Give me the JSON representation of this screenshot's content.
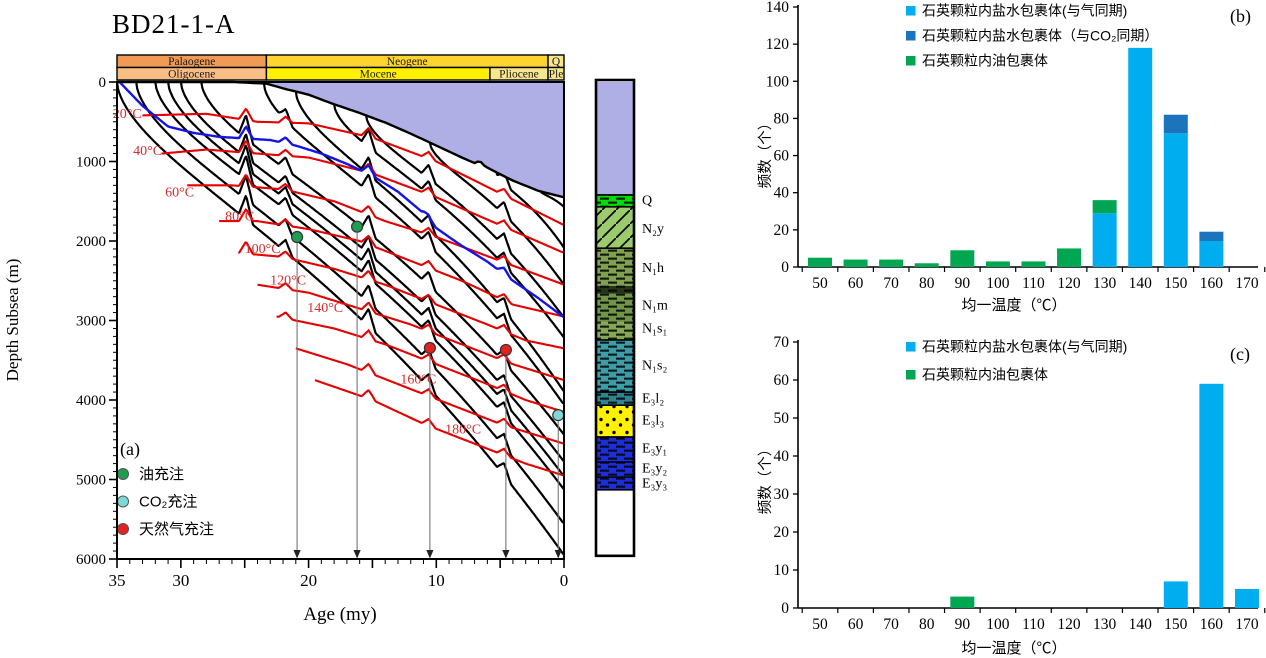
{
  "chart_data": [
    {
      "id": "a",
      "type": "line",
      "title": "BD21-1-A",
      "panel_label": "(a)",
      "xlabel": "Age (my)",
      "ylabel": "Depth Subsea (m)",
      "xlim": [
        35,
        0
      ],
      "ylim": [
        0,
        6000
      ],
      "x_major_tick": 5,
      "x_minor_tick": 1,
      "x_tick_labels": [
        35,
        30,
        20,
        10,
        0
      ],
      "y_major_tick": 1000,
      "y_minor_tick": 100,
      "water_color": "#AFAFE6",
      "chrono_header": {
        "rows": [
          [
            {
              "label": "Palaogene",
              "age_from": 35,
              "age_to": 23.3,
              "color": "#F09A55"
            },
            {
              "label": "Neogene",
              "age_from": 23.3,
              "age_to": 1.25,
              "color": "#FFD42E"
            },
            {
              "label": "Q",
              "age_from": 1.25,
              "age_to": 0,
              "color": "#F8E68C"
            }
          ],
          [
            {
              "label": "Oligocene",
              "age_from": 35,
              "age_to": 23.3,
              "color": "#F9BE85"
            },
            {
              "label": "Mocene",
              "age_from": 23.3,
              "age_to": 5.8,
              "color": "#FFF100"
            },
            {
              "label": "Pliocene",
              "age_from": 5.8,
              "age_to": 1.25,
              "color": "#F8E68C"
            },
            {
              "label": "Ple",
              "age_from": 1.25,
              "age_to": 0,
              "color": "#F8E68C"
            }
          ]
        ]
      },
      "legend": [
        {
          "label": "油充注",
          "color": "#1E9E50"
        },
        {
          "label": "CO₂充注",
          "color": "#7FD8D8"
        },
        {
          "label": "天然气充注",
          "color": "#E02222"
        }
      ],
      "seabed_points": [
        [
          35,
          0
        ],
        [
          30,
          0
        ],
        [
          26,
          0
        ],
        [
          23.3,
          20
        ],
        [
          22,
          80
        ],
        [
          20,
          160
        ],
        [
          18,
          280
        ],
        [
          16,
          390
        ],
        [
          14,
          510
        ],
        [
          12,
          650
        ],
        [
          10,
          800
        ],
        [
          8,
          950
        ],
        [
          7,
          1020
        ],
        [
          6.6,
          990
        ],
        [
          6.2,
          1060
        ],
        [
          5,
          1160
        ],
        [
          4,
          1240
        ],
        [
          2,
          1370
        ],
        [
          0,
          1450
        ]
      ],
      "blue_horizon_points": [
        [
          34.8,
          0
        ],
        [
          33,
          300
        ],
        [
          31,
          560
        ],
        [
          29,
          640
        ],
        [
          27,
          690
        ],
        [
          25,
          710
        ],
        [
          23,
          730
        ],
        [
          21,
          800
        ],
        [
          19,
          900
        ],
        [
          17,
          1030
        ],
        [
          15,
          1180
        ],
        [
          13,
          1380
        ],
        [
          11,
          1650
        ],
        [
          10.5,
          1780
        ],
        [
          9,
          1950
        ],
        [
          8,
          2060
        ],
        [
          6,
          2260
        ],
        [
          4,
          2500
        ],
        [
          2,
          2720
        ],
        [
          0,
          2960
        ]
      ],
      "blue_color": "#1414E6",
      "horizons": [
        {
          "start_age": 1.8,
          "end_depth": 1570
        },
        {
          "start_age": 5.3,
          "end_depth": 2085
        },
        {
          "start_age": 10.5,
          "end_depth": 2550
        },
        {
          "start_age": 15.5,
          "end_depth": 2965
        },
        {
          "start_age": 18,
          "end_depth": 3215
        },
        {
          "start_age": 21,
          "end_depth": 3895
        },
        {
          "start_age": 23.5,
          "end_depth": 4060
        },
        {
          "start_age": 28.4,
          "end_depth": 4435
        },
        {
          "start_age": 30,
          "end_depth": 4775
        },
        {
          "start_age": 31,
          "end_depth": 4960
        },
        {
          "start_age": 32,
          "end_depth": 5125
        },
        {
          "start_age": 33.5,
          "end_depth": 5560
        },
        {
          "start_age": 35,
          "end_depth": 5950
        }
      ],
      "erosion_events": [
        {
          "age": 24.9,
          "amp": 300
        },
        {
          "age": 21.8,
          "amp": 150
        },
        {
          "age": 15.3,
          "amp": 220
        },
        {
          "age": 10.6,
          "amp": 170
        },
        {
          "age": 4.7,
          "amp": 160
        }
      ],
      "isotherm_color": "#E60000",
      "isotherm_label_color": "#D62E2E",
      "isotherms": [
        {
          "label": "20°C",
          "label_age": 34.2,
          "label_depth": 450,
          "points": [
            [
              33,
              420
            ],
            [
              28,
              400
            ],
            [
              24,
              500
            ],
            [
              20,
              520
            ],
            [
              15,
              700
            ],
            [
              10,
              1000
            ],
            [
              5,
              1400
            ],
            [
              0,
              1800
            ]
          ]
        },
        {
          "label": "40°C",
          "label_age": 32.6,
          "label_depth": 920,
          "points": [
            [
              31.5,
              900
            ],
            [
              28,
              850
            ],
            [
              24,
              900
            ],
            [
              20,
              950
            ],
            [
              15,
              1150
            ],
            [
              10,
              1450
            ],
            [
              5,
              1800
            ],
            [
              0,
              2150
            ]
          ]
        },
        {
          "label": "60°C",
          "label_age": 30.1,
          "label_depth": 1440,
          "points": [
            [
              29.5,
              1300
            ],
            [
              26,
              1300
            ],
            [
              22,
              1350
            ],
            [
              18,
              1500
            ],
            [
              14,
              1750
            ],
            [
              10,
              1950
            ],
            [
              5,
              2250
            ],
            [
              0,
              2550
            ]
          ]
        },
        {
          "label": "80°C",
          "label_age": 25.4,
          "label_depth": 1740,
          "points": [
            [
              27,
              1750
            ],
            [
              24,
              1750
            ],
            [
              20,
              1850
            ],
            [
              16,
              2000
            ],
            [
              12,
              2250
            ],
            [
              8,
              2500
            ],
            [
              4,
              2800
            ],
            [
              0,
              2950
            ]
          ]
        },
        {
          "label": "100°C",
          "label_age": 23.6,
          "label_depth": 2150,
          "points": [
            [
              25.5,
              2150
            ],
            [
              22,
              2200
            ],
            [
              18,
              2350
            ],
            [
              14,
              2550
            ],
            [
              10,
              2800
            ],
            [
              6,
              3050
            ],
            [
              3,
              3250
            ],
            [
              0,
              3350
            ]
          ]
        },
        {
          "label": "120°C",
          "label_age": 21.6,
          "label_depth": 2550,
          "points": [
            [
              24,
              2550
            ],
            [
              20,
              2650
            ],
            [
              16,
              2850
            ],
            [
              12,
              3050
            ],
            [
              8,
              3300
            ],
            [
              4,
              3550
            ],
            [
              0,
              3750
            ]
          ]
        },
        {
          "label": "140°C",
          "label_age": 18.7,
          "label_depth": 2890,
          "points": [
            [
              22.5,
              2950
            ],
            [
              18,
              3100
            ],
            [
              14,
              3300
            ],
            [
              10,
              3550
            ],
            [
              6,
              3800
            ],
            [
              3,
              4000
            ],
            [
              0,
              4150
            ]
          ]
        },
        {
          "label": "160°C",
          "label_age": 11.4,
          "label_depth": 3790,
          "points": [
            [
              21,
              3350
            ],
            [
              17,
              3550
            ],
            [
              13,
              3800
            ],
            [
              9,
              4050
            ],
            [
              5,
              4300
            ],
            [
              2,
              4450
            ],
            [
              0,
              4550
            ]
          ]
        },
        {
          "label": "180°C",
          "label_age": 7.9,
          "label_depth": 4420,
          "points": [
            [
              19.5,
              3750
            ],
            [
              15,
              4000
            ],
            [
              11,
              4300
            ],
            [
              7,
              4550
            ],
            [
              3,
              4800
            ],
            [
              0,
              4950
            ]
          ]
        }
      ],
      "charge_events": [
        {
          "type": "oil",
          "age": 20.9,
          "depth": 1950,
          "color": "#1E9E50"
        },
        {
          "type": "oil",
          "age": 16.2,
          "depth": 1820,
          "color": "#1E9E50"
        },
        {
          "type": "gas",
          "age": 10.5,
          "depth": 3345,
          "color": "#E02222"
        },
        {
          "type": "gas",
          "age": 4.55,
          "depth": 3370,
          "color": "#E02222"
        },
        {
          "type": "co2",
          "age": 0.45,
          "depth": 4190,
          "color": "#7FD8D8"
        }
      ],
      "strat_column": {
        "bands": [
          {
            "from": 0,
            "to": 1420,
            "color": "#AFAFE6",
            "pattern": "none"
          },
          {
            "from": 1420,
            "to": 1570,
            "color": "#00DD00",
            "pattern": "dash"
          },
          {
            "from": 1570,
            "to": 2090,
            "color": "#9CCB6E",
            "pattern": "hatch"
          },
          {
            "from": 2090,
            "to": 2565,
            "color": "#7FA04F",
            "pattern": "dash"
          },
          {
            "from": 2565,
            "to": 2665,
            "color": "#25351A",
            "pattern": "dash"
          },
          {
            "from": 2665,
            "to": 3020,
            "color": "#6F9646",
            "pattern": "dash"
          },
          {
            "from": 3020,
            "to": 3245,
            "color": "#85A855",
            "pattern": "dash"
          },
          {
            "from": 3245,
            "to": 3900,
            "color": "#3B9DA8",
            "pattern": "dash"
          },
          {
            "from": 3900,
            "to": 4065,
            "color": "#2E8490",
            "pattern": "dash"
          },
          {
            "from": 4065,
            "to": 4465,
            "color": "#FFF100",
            "pattern": "dots"
          },
          {
            "from": 4465,
            "to": 4780,
            "color": "#1C2FD6",
            "pattern": "dash"
          },
          {
            "from": 4780,
            "to": 4970,
            "color": "#1C2FD6",
            "pattern": "dash"
          },
          {
            "from": 4970,
            "to": 5130,
            "color": "#1C2FD6",
            "pattern": "dash"
          },
          {
            "from": 5130,
            "to": 5960,
            "color": "#FFFFFF",
            "pattern": "none"
          }
        ],
        "labels": [
          {
            "text": "Q",
            "depth": 1480
          },
          {
            "text": "N₂y",
            "depth": 1835
          },
          {
            "text": "N₁h",
            "depth": 2325
          },
          {
            "text": "N₁m",
            "depth": 2800
          },
          {
            "text": "N₁s₁",
            "depth": 3090
          },
          {
            "text": "N₁s₂",
            "depth": 3555
          },
          {
            "text": "E₃l₂",
            "depth": 3970
          },
          {
            "text": "E₃l₃",
            "depth": 4245
          },
          {
            "text": "E₃y₁",
            "depth": 4600
          },
          {
            "text": "E₃y₂",
            "depth": 4850
          },
          {
            "text": "E₃y₃",
            "depth": 5040
          }
        ]
      }
    },
    {
      "id": "b",
      "type": "bar",
      "panel_label": "(b)",
      "xlabel": "均一温度（℃）",
      "ylabel": "频数（个）",
      "categories": [
        50,
        60,
        70,
        80,
        90,
        100,
        110,
        120,
        130,
        140,
        150,
        160,
        170
      ],
      "ylim": [
        0,
        140
      ],
      "y_tick": 20,
      "series": [
        {
          "name": "石英颗粒内盐水包裹体(与气同期)",
          "color": "#00AEEF",
          "values": [
            0,
            0,
            0,
            0,
            0,
            0,
            0,
            0,
            29,
            118,
            72,
            14,
            0
          ]
        },
        {
          "name": "石英颗粒内盐水包裹体（与CO₂同期）",
          "color": "#1C75BC",
          "values": [
            0,
            0,
            0,
            0,
            0,
            0,
            0,
            0,
            0,
            0,
            10,
            5,
            0
          ]
        },
        {
          "name": "石英颗粒内油包裹体",
          "color": "#00A651",
          "values": [
            5,
            4,
            4,
            2,
            9,
            3,
            3,
            10,
            7,
            0,
            0,
            0,
            0
          ]
        }
      ]
    },
    {
      "id": "c",
      "type": "bar",
      "panel_label": "(c)",
      "xlabel": "均一温度（℃）",
      "ylabel": "频数（个）",
      "categories": [
        50,
        60,
        70,
        80,
        90,
        100,
        110,
        120,
        130,
        140,
        150,
        160,
        170
      ],
      "ylim": [
        0,
        70
      ],
      "y_tick": 10,
      "series": [
        {
          "name": "石英颗粒内盐水包裹体(与气同期)",
          "color": "#00AEEF",
          "values": [
            0,
            0,
            0,
            0,
            0,
            0,
            0,
            0,
            0,
            0,
            7,
            59,
            5
          ]
        },
        {
          "name": "石英颗粒内油包裹体",
          "color": "#00A651",
          "values": [
            0,
            0,
            0,
            0,
            3,
            0,
            0,
            0,
            0,
            0,
            0,
            0,
            0
          ]
        }
      ]
    }
  ]
}
